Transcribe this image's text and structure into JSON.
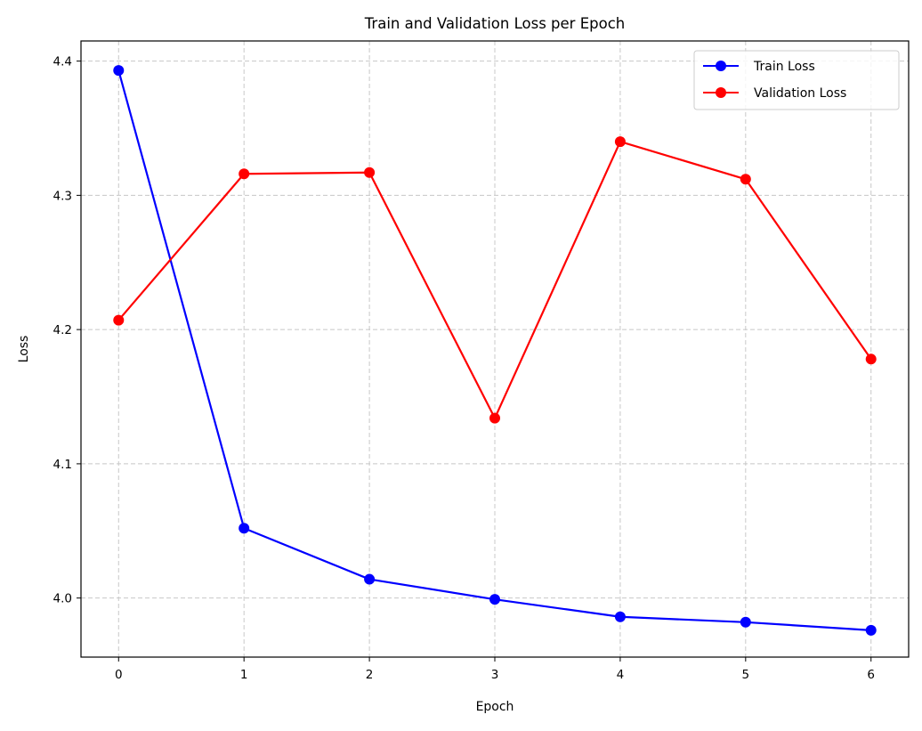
{
  "chart_data": {
    "type": "line",
    "title": "Train and Validation Loss per Epoch",
    "xlabel": "Epoch",
    "ylabel": "Loss",
    "x": [
      0,
      1,
      2,
      3,
      4,
      5,
      6
    ],
    "xlim": [
      -0.3,
      6.3
    ],
    "ylim": [
      3.956,
      4.415
    ],
    "xticks": [
      0,
      1,
      2,
      3,
      4,
      5,
      6
    ],
    "yticks": [
      "4.0",
      "4.1",
      "4.2",
      "4.3",
      "4.4"
    ],
    "grid": true,
    "legend_position": "top-right",
    "series": [
      {
        "name": "Train Loss",
        "color": "#0000ff",
        "marker": "circle",
        "values": [
          4.393,
          4.052,
          4.014,
          3.999,
          3.986,
          3.982,
          3.976
        ]
      },
      {
        "name": "Validation Loss",
        "color": "#ff0000",
        "marker": "circle",
        "values": [
          4.207,
          4.316,
          4.317,
          4.134,
          4.34,
          4.312,
          4.178
        ]
      }
    ]
  }
}
